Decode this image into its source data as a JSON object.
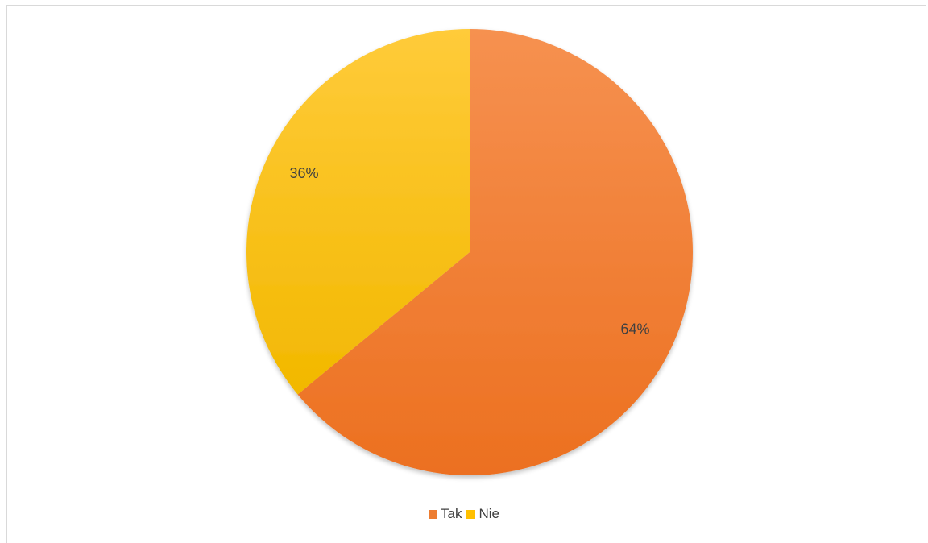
{
  "chart_data": {
    "type": "pie",
    "categories": [
      "Tak",
      "Nie"
    ],
    "values": [
      64,
      36
    ],
    "labels": [
      "64%",
      "36%"
    ],
    "colors": [
      "#ED7D31",
      "#FFC000"
    ],
    "start_angle_deg": 0,
    "direction": "clockwise",
    "legend": "bottom"
  }
}
